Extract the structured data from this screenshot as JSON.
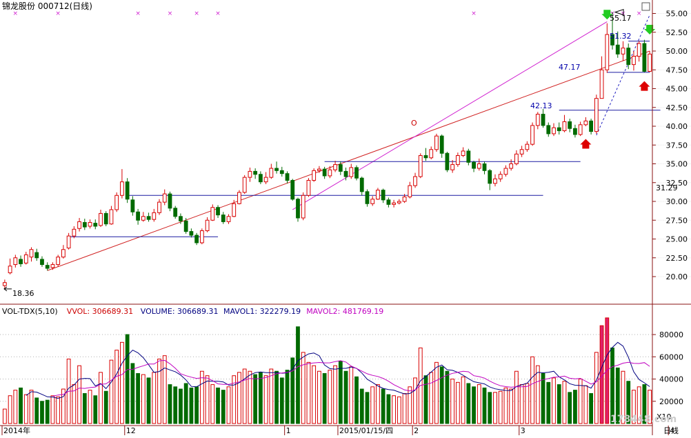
{
  "title": "锦龙股份 000712(日线)",
  "price_panel": {
    "ticks": [
      "55.00",
      "52.50",
      "50.00",
      "47.50",
      "45.00",
      "42.50",
      "40.00",
      "37.50",
      "35.00",
      "32.50",
      "30.00",
      "27.50",
      "25.00",
      "22.50",
      "20.00"
    ],
    "current_price": "31.29",
    "low_label": "18.36",
    "high_label": "55.17",
    "annotations": [
      {
        "id": "a1",
        "text": "51.32",
        "price": 51.32
      },
      {
        "id": "a2",
        "text": "47.17",
        "price": 47.17
      },
      {
        "id": "a3",
        "text": "42.13",
        "price": 42.13
      }
    ],
    "circle_mark": "O"
  },
  "volume_panel": {
    "legend": [
      {
        "text": "VOL-TDX(5,10)",
        "color": "#000000"
      },
      {
        "text": "VVOL: 306689.31",
        "color": "#cc0000"
      },
      {
        "text": "VOLUME: 306689.31",
        "color": "#000080"
      },
      {
        "text": "MAVOL1: 322279.19",
        "color": "#000080"
      },
      {
        "text": "MAVOL2: 481769.19",
        "color": "#c000c0"
      }
    ],
    "ticks": [
      "80000",
      "60000",
      "40000",
      "20000"
    ],
    "unit": "X10"
  },
  "x_labels": [
    {
      "text": "2014年",
      "index": 0
    },
    {
      "text": "12",
      "index": 23
    },
    {
      "text": "1",
      "index": 53
    },
    {
      "text": "2015/01/15/四",
      "index": 63
    },
    {
      "text": "2",
      "index": 77
    },
    {
      "text": "3",
      "index": 97
    },
    {
      "text": "4",
      "index": 125
    }
  ],
  "corner_label": "日线",
  "watermark": "178448.com",
  "chart_data": {
    "type": "candlestick",
    "symbol": "000712",
    "name": "锦龙股份",
    "period": "日线",
    "y_range": [
      18.36,
      55.17
    ],
    "volume_range": [
      0,
      90000
    ],
    "candles": [
      [
        18.8,
        19.2,
        19.6,
        18.36,
        13000
      ],
      [
        20.5,
        21.4,
        22.4,
        20.3,
        25000
      ],
      [
        21.6,
        22.5,
        22.9,
        21.2,
        30000
      ],
      [
        22.3,
        21.7,
        22.8,
        21.3,
        32000
      ],
      [
        21.8,
        22.9,
        23.3,
        21.6,
        26000
      ],
      [
        22.6,
        23.6,
        23.9,
        22.0,
        30000
      ],
      [
        23.2,
        22.5,
        23.7,
        22.1,
        23000
      ],
      [
        22.3,
        21.6,
        22.7,
        21.3,
        20000
      ],
      [
        21.5,
        21.1,
        21.9,
        20.8,
        21000
      ],
      [
        21.2,
        21.6,
        21.9,
        20.9,
        25000
      ],
      [
        21.6,
        22.6,
        22.9,
        21.3,
        24000
      ],
      [
        22.6,
        23.6,
        24.2,
        22.4,
        31000
      ],
      [
        23.8,
        25.4,
        25.8,
        23.6,
        58000
      ],
      [
        25.4,
        26.3,
        26.7,
        25.1,
        35000
      ],
      [
        26.4,
        27.3,
        27.8,
        26.0,
        52000
      ],
      [
        27.2,
        26.6,
        27.7,
        26.2,
        27000
      ],
      [
        26.7,
        27.2,
        27.6,
        26.4,
        30000
      ],
      [
        27.1,
        26.7,
        27.6,
        26.3,
        25000
      ],
      [
        26.8,
        28.4,
        28.9,
        26.6,
        46000
      ],
      [
        28.4,
        27.0,
        28.7,
        26.7,
        29000
      ],
      [
        27.0,
        28.9,
        29.4,
        26.9,
        57000
      ],
      [
        28.9,
        30.8,
        31.2,
        28.6,
        66000
      ],
      [
        30.8,
        32.6,
        34.3,
        30.4,
        73000
      ],
      [
        32.6,
        30.3,
        33.1,
        29.8,
        80000
      ],
      [
        30.2,
        28.6,
        30.7,
        28.1,
        54000
      ],
      [
        28.6,
        27.5,
        29.0,
        26.9,
        45000
      ],
      [
        27.5,
        28.0,
        28.6,
        27.3,
        44000
      ],
      [
        28.0,
        27.6,
        28.5,
        27.3,
        41000
      ],
      [
        27.6,
        28.5,
        29.0,
        27.3,
        46000
      ],
      [
        28.5,
        29.9,
        30.3,
        28.2,
        58000
      ],
      [
        29.9,
        31.0,
        31.6,
        29.5,
        61000
      ],
      [
        31.0,
        29.1,
        31.3,
        28.7,
        35000
      ],
      [
        29.1,
        28.0,
        29.4,
        27.7,
        33000
      ],
      [
        28.0,
        27.4,
        28.4,
        27.0,
        31000
      ],
      [
        27.4,
        26.0,
        27.8,
        25.7,
        36000
      ],
      [
        26.0,
        25.5,
        26.4,
        25.2,
        32000
      ],
      [
        25.5,
        24.5,
        25.8,
        24.2,
        33000
      ],
      [
        24.5,
        26.1,
        26.4,
        24.3,
        47000
      ],
      [
        26.1,
        27.5,
        27.9,
        25.9,
        43000
      ],
      [
        27.5,
        29.2,
        29.6,
        27.4,
        35000
      ],
      [
        29.2,
        28.2,
        29.5,
        27.8,
        32000
      ],
      [
        28.2,
        27.3,
        28.6,
        27.0,
        30000
      ],
      [
        27.3,
        28.0,
        28.3,
        27.0,
        33000
      ],
      [
        28.0,
        29.7,
        30.2,
        27.9,
        43000
      ],
      [
        29.7,
        31.2,
        31.5,
        29.6,
        46000
      ],
      [
        31.2,
        33.2,
        33.5,
        31.0,
        49000
      ],
      [
        33.2,
        34.0,
        34.5,
        32.6,
        47000
      ],
      [
        34.0,
        33.6,
        34.4,
        33.0,
        44000
      ],
      [
        33.6,
        32.6,
        34.0,
        32.3,
        46000
      ],
      [
        32.6,
        33.2,
        33.9,
        32.3,
        43000
      ],
      [
        33.2,
        34.4,
        35.0,
        33.0,
        49000
      ],
      [
        34.4,
        34.1,
        35.3,
        33.7,
        47000
      ],
      [
        34.1,
        33.7,
        34.6,
        33.3,
        41000
      ],
      [
        33.7,
        32.8,
        34.0,
        32.4,
        48000
      ],
      [
        32.8,
        30.3,
        33.0,
        30.1,
        59000
      ],
      [
        30.3,
        27.8,
        30.5,
        27.3,
        87000
      ],
      [
        27.8,
        30.8,
        31.2,
        27.5,
        64000
      ],
      [
        30.8,
        32.8,
        33.1,
        30.6,
        55000
      ],
      [
        32.8,
        34.1,
        34.4,
        32.6,
        52000
      ],
      [
        34.1,
        34.3,
        34.7,
        33.8,
        47000
      ],
      [
        34.3,
        33.4,
        34.6,
        33.0,
        45000
      ],
      [
        33.4,
        34.2,
        34.7,
        33.1,
        48000
      ],
      [
        34.2,
        34.9,
        35.4,
        33.9,
        52000
      ],
      [
        34.9,
        34.0,
        35.3,
        33.5,
        56000
      ],
      [
        34.0,
        33.3,
        34.5,
        32.8,
        47000
      ],
      [
        33.3,
        34.5,
        35.0,
        33.0,
        51000
      ],
      [
        34.5,
        33.1,
        34.8,
        32.8,
        42000
      ],
      [
        33.1,
        31.3,
        33.3,
        30.8,
        31000
      ],
      [
        31.3,
        29.7,
        31.6,
        29.3,
        28000
      ],
      [
        29.7,
        30.3,
        30.7,
        29.4,
        33000
      ],
      [
        30.3,
        31.5,
        31.8,
        30.2,
        35000
      ],
      [
        31.5,
        30.2,
        31.7,
        29.8,
        31000
      ],
      [
        30.2,
        29.6,
        30.5,
        29.2,
        26000
      ],
      [
        29.6,
        29.8,
        30.2,
        29.2,
        25000
      ],
      [
        29.8,
        30.0,
        30.3,
        29.6,
        24000
      ],
      [
        30.0,
        30.6,
        31.0,
        29.8,
        27000
      ],
      [
        30.6,
        32.1,
        32.6,
        30.4,
        33000
      ],
      [
        32.1,
        33.3,
        33.8,
        31.8,
        41000
      ],
      [
        33.3,
        36.1,
        36.4,
        33.1,
        68000
      ],
      [
        36.1,
        35.8,
        37.1,
        35.4,
        43000
      ],
      [
        35.8,
        36.9,
        37.3,
        35.6,
        46000
      ],
      [
        36.9,
        38.7,
        39.0,
        36.6,
        55000
      ],
      [
        38.7,
        36.4,
        38.9,
        35.8,
        51000
      ],
      [
        36.4,
        34.2,
        36.6,
        33.9,
        47000
      ],
      [
        34.2,
        34.9,
        35.5,
        33.8,
        40000
      ],
      [
        34.9,
        36.1,
        36.5,
        34.6,
        37000
      ],
      [
        36.1,
        36.7,
        37.2,
        35.9,
        42000
      ],
      [
        36.7,
        35.2,
        37.0,
        34.8,
        36000
      ],
      [
        35.2,
        34.4,
        35.4,
        33.9,
        33000
      ],
      [
        34.4,
        35.0,
        35.7,
        34.1,
        35000
      ],
      [
        35.0,
        34.1,
        35.3,
        33.6,
        32000
      ],
      [
        34.1,
        32.4,
        34.3,
        31.5,
        28000
      ],
      [
        32.4,
        33.0,
        33.6,
        32.0,
        28000
      ],
      [
        33.0,
        33.6,
        34.0,
        32.6,
        29000
      ],
      [
        33.6,
        34.4,
        34.8,
        33.3,
        32000
      ],
      [
        34.4,
        35.0,
        35.6,
        34.1,
        31000
      ],
      [
        35.0,
        36.3,
        36.8,
        34.8,
        47000
      ],
      [
        36.3,
        36.9,
        37.4,
        35.9,
        35000
      ],
      [
        36.9,
        37.6,
        38.0,
        36.6,
        36000
      ],
      [
        37.6,
        40.1,
        40.5,
        37.4,
        60000
      ],
      [
        40.1,
        41.6,
        41.9,
        39.6,
        52000
      ],
      [
        41.6,
        40.1,
        42.3,
        39.8,
        45000
      ],
      [
        40.1,
        39.0,
        40.5,
        38.6,
        37000
      ],
      [
        39.0,
        39.8,
        40.4,
        38.7,
        41000
      ],
      [
        39.8,
        39.4,
        40.5,
        38.9,
        35000
      ],
      [
        39.4,
        40.6,
        41.5,
        39.2,
        38000
      ],
      [
        40.6,
        39.7,
        41.0,
        39.2,
        28000
      ],
      [
        39.7,
        38.9,
        40.2,
        38.5,
        30000
      ],
      [
        38.9,
        40.2,
        40.6,
        38.7,
        40000
      ],
      [
        40.2,
        40.7,
        41.2,
        40.0,
        34000
      ],
      [
        40.7,
        39.3,
        41.0,
        38.9,
        27000
      ],
      [
        39.3,
        43.7,
        44.2,
        39.0,
        64000
      ],
      [
        43.7,
        47.5,
        49.3,
        45.6,
        88000
      ],
      [
        47.5,
        52.2,
        53.7,
        47.1,
        95000
      ],
      [
        52.2,
        50.8,
        55.17,
        50.2,
        68000
      ],
      [
        50.8,
        49.6,
        52.6,
        49.1,
        50000
      ],
      [
        49.6,
        50.4,
        51.3,
        48.7,
        47000
      ],
      [
        50.4,
        48.2,
        51.0,
        47.6,
        38000
      ],
      [
        48.2,
        49.3,
        50.0,
        47.4,
        30000
      ],
      [
        49.3,
        51.0,
        51.32,
        48.6,
        33000
      ],
      [
        51.0,
        47.3,
        51.5,
        47.17,
        35000
      ],
      [
        47.3,
        49.6,
        50.0,
        47.2,
        30000
      ]
    ]
  }
}
